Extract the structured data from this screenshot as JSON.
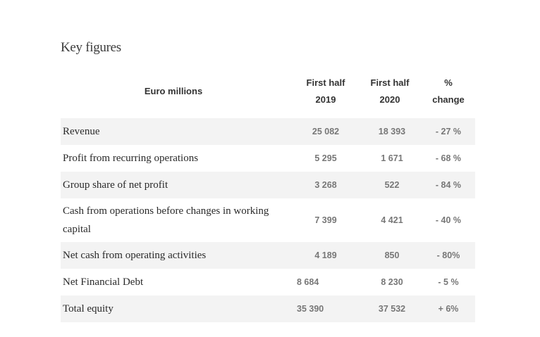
{
  "title": "Key figures",
  "table": {
    "headers": {
      "label": "Euro millions",
      "col1_line1": "First half",
      "col1_line2": "2019",
      "col2_line1": "First half",
      "col2_line2": "2020",
      "col3_line1": "%",
      "col3_line2": "change"
    },
    "rows": [
      {
        "label": "Revenue",
        "h1_2019": "25 082",
        "h1_2020": "18 393",
        "change": "- 27 %"
      },
      {
        "label": "Profit from recurring operations",
        "h1_2019": "5 295",
        "h1_2020": "1 671",
        "change": "- 68 %"
      },
      {
        "label": "Group share of net profit",
        "h1_2019": "3 268",
        "h1_2020": "522",
        "change": "- 84 %"
      },
      {
        "label": "Cash from operations before changes in working capital",
        "h1_2019": "7 399",
        "h1_2020": "4 421",
        "change": "- 40 %"
      },
      {
        "label": "Net cash from operating activities",
        "h1_2019": "4 189",
        "h1_2020": "850",
        "change": "- 80%"
      },
      {
        "label": "Net Financial Debt",
        "h1_2019": "8 684",
        "h1_2020": "8 230",
        "change": "- 5 %"
      },
      {
        "label": "Total equity",
        "h1_2019": "35 390",
        "h1_2020": "37 532",
        "change": "+ 6%"
      }
    ]
  }
}
